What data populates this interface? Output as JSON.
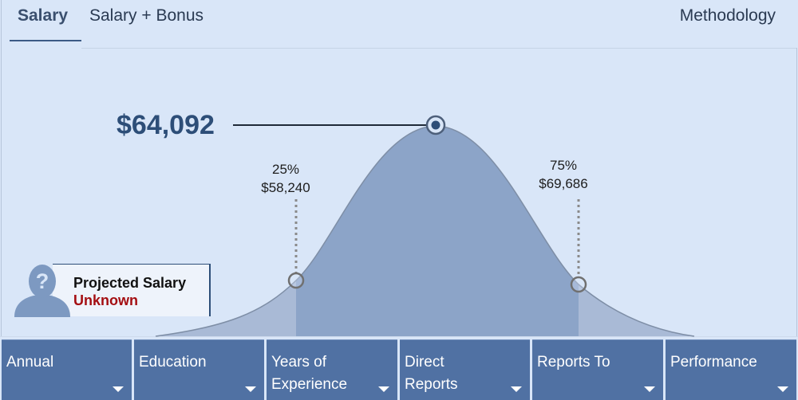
{
  "tabs": [
    {
      "label": "Salary",
      "active": true
    },
    {
      "label": "Salary + Bonus",
      "active": false
    }
  ],
  "methodology_label": "Methodology",
  "distribution": {
    "median_value": "$64,092",
    "p25_percent": "25%",
    "p25_value": "$58,240",
    "p75_percent": "75%",
    "p75_value": "$69,686"
  },
  "projected": {
    "title": "Projected Salary",
    "value": "Unknown"
  },
  "filters": [
    {
      "label": "Annual"
    },
    {
      "label": "Education"
    },
    {
      "label": "Years of\nExperience"
    },
    {
      "label": "Direct\nReports"
    },
    {
      "label": "Reports To"
    },
    {
      "label": "Performance"
    }
  ],
  "colors": {
    "curve_fill": "#8ca4c8",
    "tail_fill": "#a9bad6",
    "filter_bg": "#5071a3",
    "projected_unknown": "#a40e12",
    "median_text": "#2d4e78"
  },
  "icons": {
    "avatar": "unknown-person-icon",
    "dropdown": "caret-down-icon",
    "median_marker": "median-marker-icon",
    "percentile_marker": "percentile-marker-icon"
  }
}
